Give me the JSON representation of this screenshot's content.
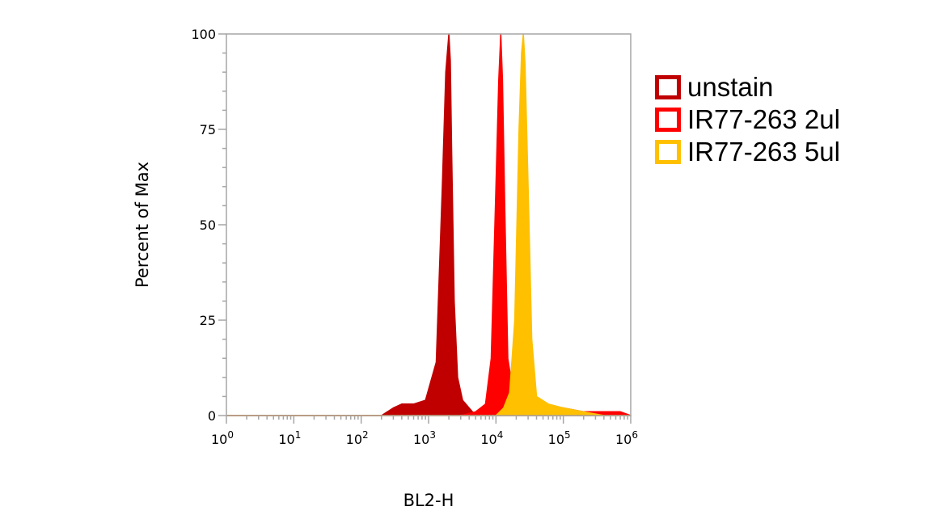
{
  "chart_data": {
    "type": "area",
    "title": "",
    "xlabel": "BL2-H",
    "ylabel": "Percent of Max",
    "x_scale": "log",
    "xlim": [
      1,
      1000000
    ],
    "ylim": [
      0,
      100
    ],
    "x_tick_labels": [
      {
        "base": "10",
        "exp": "0"
      },
      {
        "base": "10",
        "exp": "1"
      },
      {
        "base": "10",
        "exp": "2"
      },
      {
        "base": "10",
        "exp": "3"
      },
      {
        "base": "10",
        "exp": "4"
      },
      {
        "base": "10",
        "exp": "5"
      },
      {
        "base": "10",
        "exp": "6"
      }
    ],
    "y_ticks": [
      0,
      25,
      50,
      75,
      100
    ],
    "y_tick_labels": [
      "0",
      "25",
      "50",
      "75",
      "100"
    ],
    "grid": false,
    "legend_position": "right",
    "series": [
      {
        "name": "unstain",
        "color": "#c00000",
        "x": [
          1,
          200,
          300,
          400,
          600,
          900,
          1300,
          1600,
          1800,
          2000,
          2100,
          2200,
          2400,
          2700,
          3200,
          4000,
          5000,
          1000000
        ],
        "y": [
          0,
          0,
          2,
          3,
          3,
          4,
          14,
          60,
          90,
          100,
          93,
          70,
          30,
          10,
          4,
          2,
          0,
          0
        ]
      },
      {
        "name": "IR77-263 2ul",
        "color": "#ff0000",
        "x": [
          1,
          3000,
          5000,
          7000,
          8500,
          10000,
          11000,
          11800,
          12500,
          13500,
          15000,
          18000,
          25000,
          50000,
          100000,
          200000,
          400000,
          700000,
          1000000
        ],
        "y": [
          0,
          0,
          1,
          3,
          15,
          60,
          88,
          100,
          88,
          55,
          15,
          6,
          4,
          3,
          2,
          1,
          1,
          1,
          0
        ]
      },
      {
        "name": "IR77-263 5ul",
        "color": "#ffc000",
        "x": [
          1,
          10000,
          13000,
          16000,
          19000,
          22000,
          24000,
          25500,
          27000,
          30000,
          34000,
          40000,
          60000,
          100000,
          200000,
          400000,
          1000000
        ],
        "y": [
          0,
          0,
          2,
          6,
          25,
          75,
          95,
          100,
          92,
          60,
          20,
          5,
          3,
          2,
          1,
          0,
          0
        ]
      }
    ]
  }
}
